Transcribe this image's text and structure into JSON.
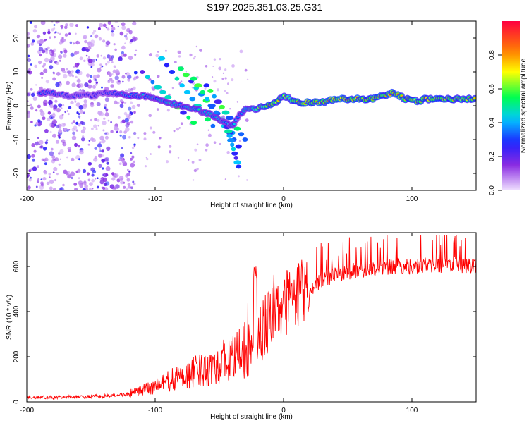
{
  "title": "S197.2025.351.03.25.G31",
  "chart_data": [
    {
      "type": "heatmap",
      "name": "spectrogram",
      "xlabel": "Height of straight line (km)",
      "ylabel": "Frequency (Hz)",
      "xlim": [
        -200,
        150
      ],
      "ylim": [
        -25,
        25
      ],
      "xticks": [
        -200,
        -100,
        0,
        100
      ],
      "xtick_labels": [
        "-200",
        "-100",
        "0",
        "100"
      ],
      "yticks": [
        -20,
        -10,
        0,
        10,
        20
      ],
      "ytick_labels": [
        "-20",
        "-10",
        "0",
        "10",
        "20"
      ],
      "ridge": {
        "x": [
          -185,
          -170,
          -150,
          -135,
          -120,
          -110,
          -100,
          -90,
          -80,
          -70,
          -60,
          -50,
          -40,
          -35,
          -30,
          -25,
          -20,
          -15,
          -10,
          -5,
          0,
          5,
          10,
          20,
          30,
          40,
          50,
          60,
          70,
          75,
          80,
          85,
          90,
          95,
          100,
          105,
          110,
          120,
          130,
          140,
          150
        ],
        "y": [
          4,
          3,
          3,
          4,
          3,
          3,
          2,
          1,
          0,
          -1,
          -2,
          -4,
          -6,
          -3,
          -1,
          -1,
          -1,
          0,
          0,
          1,
          3,
          2,
          1,
          1,
          1,
          2,
          2,
          2,
          2,
          3,
          3,
          4,
          3,
          2,
          2,
          1,
          2,
          2,
          2,
          2,
          2
        ],
        "amp": [
          0.4,
          0.35,
          0.3,
          0.35,
          0.45,
          0.45,
          0.5,
          0.5,
          0.45,
          0.5,
          0.5,
          0.45,
          0.45,
          0.4,
          0.5,
          0.6,
          0.75,
          0.75,
          0.8,
          0.8,
          0.7,
          0.7,
          0.85,
          0.9,
          0.9,
          0.95,
          0.95,
          0.95,
          0.9,
          0.9,
          0.85,
          0.95,
          0.9,
          0.8,
          0.8,
          0.85,
          0.85,
          0.85,
          0.85,
          0.8,
          0.8
        ]
      },
      "colorbar": {
        "label": "Normalized spectral amplitude",
        "range": [
          0.0,
          1.0
        ],
        "ticks": [
          0.0,
          0.2,
          0.4,
          0.6,
          0.8
        ],
        "tick_labels": [
          "0.0",
          "0.2",
          "0.4",
          "0.6",
          "0.8"
        ]
      }
    },
    {
      "type": "line",
      "name": "snr",
      "xlabel": "Height of straight line (km)",
      "ylabel": "SNR (10 * v/v)",
      "xlim": [
        -200,
        150
      ],
      "ylim": [
        0,
        750
      ],
      "xticks": [
        -200,
        -100,
        0,
        100
      ],
      "xtick_labels": [
        "-200",
        "-100",
        "0",
        "100"
      ],
      "yticks": [
        0,
        200,
        400,
        600
      ],
      "ytick_labels": [
        "0",
        "200",
        "400",
        "600"
      ],
      "color": "#ff0000",
      "envelope": {
        "x": [
          -200,
          -180,
          -160,
          -140,
          -120,
          -110,
          -100,
          -90,
          -80,
          -70,
          -60,
          -50,
          -40,
          -30,
          -25,
          -22,
          -20,
          -15,
          -10,
          -5,
          0,
          5,
          10,
          15,
          20,
          30,
          40,
          50,
          60,
          70,
          80,
          90,
          100,
          110,
          120,
          130,
          140,
          150
        ],
        "y": [
          20,
          20,
          22,
          25,
          35,
          50,
          70,
          90,
          110,
          130,
          150,
          170,
          195,
          220,
          240,
          90,
          280,
          330,
          380,
          400,
          420,
          440,
          460,
          480,
          500,
          540,
          560,
          575,
          585,
          590,
          595,
          600,
          600,
          605,
          605,
          610,
          605,
          605
        ]
      }
    }
  ]
}
